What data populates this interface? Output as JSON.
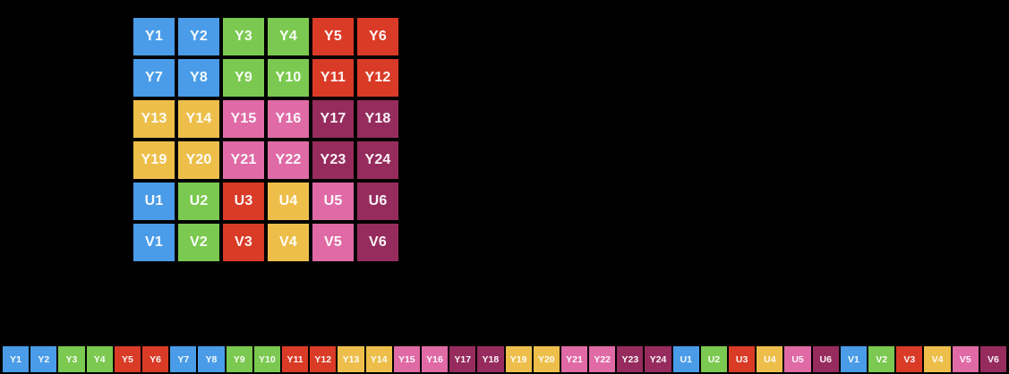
{
  "colors": {
    "background": "#000000",
    "text": "#ffffff",
    "blue": "#4a9ce8",
    "green": "#7bc950",
    "red": "#d93b27",
    "yellow": "#edbf4a",
    "pink": "#df6aa5",
    "magenta": "#962c5e"
  },
  "grid": {
    "columns": 6,
    "rows": 6,
    "cells": [
      {
        "label": "Y1",
        "color": "blue"
      },
      {
        "label": "Y2",
        "color": "blue"
      },
      {
        "label": "Y3",
        "color": "green"
      },
      {
        "label": "Y4",
        "color": "green"
      },
      {
        "label": "Y5",
        "color": "red"
      },
      {
        "label": "Y6",
        "color": "red"
      },
      {
        "label": "Y7",
        "color": "blue"
      },
      {
        "label": "Y8",
        "color": "blue"
      },
      {
        "label": "Y9",
        "color": "green"
      },
      {
        "label": "Y10",
        "color": "green"
      },
      {
        "label": "Y11",
        "color": "red"
      },
      {
        "label": "Y12",
        "color": "red"
      },
      {
        "label": "Y13",
        "color": "yellow"
      },
      {
        "label": "Y14",
        "color": "yellow"
      },
      {
        "label": "Y15",
        "color": "pink"
      },
      {
        "label": "Y16",
        "color": "pink"
      },
      {
        "label": "Y17",
        "color": "magenta"
      },
      {
        "label": "Y18",
        "color": "magenta"
      },
      {
        "label": "Y19",
        "color": "yellow"
      },
      {
        "label": "Y20",
        "color": "yellow"
      },
      {
        "label": "Y21",
        "color": "pink"
      },
      {
        "label": "Y22",
        "color": "pink"
      },
      {
        "label": "Y23",
        "color": "magenta"
      },
      {
        "label": "Y24",
        "color": "magenta"
      },
      {
        "label": "U1",
        "color": "blue"
      },
      {
        "label": "U2",
        "color": "green"
      },
      {
        "label": "U3",
        "color": "red"
      },
      {
        "label": "U4",
        "color": "yellow"
      },
      {
        "label": "U5",
        "color": "pink"
      },
      {
        "label": "U6",
        "color": "magenta"
      },
      {
        "label": "V1",
        "color": "blue"
      },
      {
        "label": "V2",
        "color": "green"
      },
      {
        "label": "V3",
        "color": "red"
      },
      {
        "label": "V4",
        "color": "yellow"
      },
      {
        "label": "V5",
        "color": "pink"
      },
      {
        "label": "V6",
        "color": "magenta"
      }
    ]
  },
  "strip": {
    "cells": [
      {
        "label": "Y1",
        "color": "blue"
      },
      {
        "label": "Y2",
        "color": "blue"
      },
      {
        "label": "Y3",
        "color": "green"
      },
      {
        "label": "Y4",
        "color": "green"
      },
      {
        "label": "Y5",
        "color": "red"
      },
      {
        "label": "Y6",
        "color": "red"
      },
      {
        "label": "Y7",
        "color": "blue"
      },
      {
        "label": "Y8",
        "color": "blue"
      },
      {
        "label": "Y9",
        "color": "green"
      },
      {
        "label": "Y10",
        "color": "green"
      },
      {
        "label": "Y11",
        "color": "red"
      },
      {
        "label": "Y12",
        "color": "red"
      },
      {
        "label": "Y13",
        "color": "yellow"
      },
      {
        "label": "Y14",
        "color": "yellow"
      },
      {
        "label": "Y15",
        "color": "pink"
      },
      {
        "label": "Y16",
        "color": "pink"
      },
      {
        "label": "Y17",
        "color": "magenta"
      },
      {
        "label": "Y18",
        "color": "magenta"
      },
      {
        "label": "Y19",
        "color": "yellow"
      },
      {
        "label": "Y20",
        "color": "yellow"
      },
      {
        "label": "Y21",
        "color": "pink"
      },
      {
        "label": "Y22",
        "color": "pink"
      },
      {
        "label": "Y23",
        "color": "magenta"
      },
      {
        "label": "Y24",
        "color": "magenta"
      },
      {
        "label": "U1",
        "color": "blue"
      },
      {
        "label": "U2",
        "color": "green"
      },
      {
        "label": "U3",
        "color": "red"
      },
      {
        "label": "U4",
        "color": "yellow"
      },
      {
        "label": "U5",
        "color": "pink"
      },
      {
        "label": "U6",
        "color": "magenta"
      },
      {
        "label": "V1",
        "color": "blue"
      },
      {
        "label": "V2",
        "color": "green"
      },
      {
        "label": "V3",
        "color": "red"
      },
      {
        "label": "V4",
        "color": "yellow"
      },
      {
        "label": "V5",
        "color": "pink"
      },
      {
        "label": "V6",
        "color": "magenta"
      }
    ]
  }
}
